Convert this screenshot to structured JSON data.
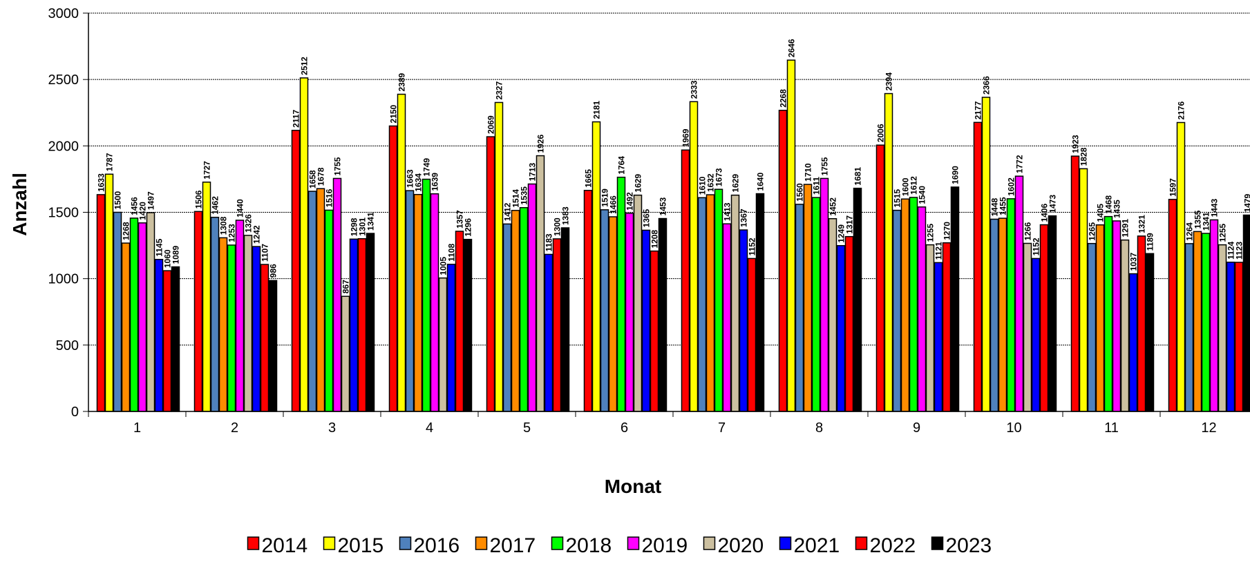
{
  "chart_data": {
    "type": "bar",
    "xlabel": "Monat",
    "ylabel": "Anzahl",
    "ylim": [
      0,
      3000
    ],
    "yticks": [
      "0",
      "500",
      "1000",
      "1500",
      "2000",
      "2500",
      "3000"
    ],
    "grid": true,
    "legend_position": "bottom",
    "categories": [
      "1",
      "2",
      "3",
      "4",
      "5",
      "6",
      "7",
      "8",
      "9",
      "10",
      "11",
      "12"
    ],
    "series": [
      {
        "name": "2014",
        "color": "#ff0000",
        "values": [
          1633,
          1506,
          2117,
          2150,
          2069,
          1665,
          1969,
          2268,
          2006,
          2177,
          1923,
          1597
        ]
      },
      {
        "name": "2015",
        "color": "#ffff00",
        "values": [
          1787,
          1727,
          2512,
          2389,
          2327,
          2181,
          2333,
          2646,
          2394,
          2366,
          1828,
          2176
        ]
      },
      {
        "name": "2016",
        "color": "#4f81bd",
        "values": [
          1500,
          1462,
          1658,
          1663,
          1412,
          1519,
          1610,
          1560,
          1515,
          1448,
          1265,
          1264
        ]
      },
      {
        "name": "2017",
        "color": "#ff8c00",
        "values": [
          1268,
          1308,
          1678,
          1634,
          1514,
          1466,
          1632,
          1710,
          1600,
          1455,
          1405,
          1355
        ]
      },
      {
        "name": "2018",
        "color": "#00ff00",
        "values": [
          1456,
          1253,
          1516,
          1749,
          1535,
          1764,
          1673,
          1611,
          1612,
          1602,
          1468,
          1341
        ]
      },
      {
        "name": "2019",
        "color": "#ff00ff",
        "values": [
          1420,
          1440,
          1755,
          1639,
          1713,
          1492,
          1413,
          1755,
          1540,
          1772,
          1435,
          1443
        ]
      },
      {
        "name": "2020",
        "color": "#ccc0a0",
        "values": [
          1497,
          1326,
          867,
          1005,
          1926,
          1629,
          1629,
          1452,
          1255,
          1266,
          1291,
          1255
        ]
      },
      {
        "name": "2021",
        "color": "#0000ff",
        "values": [
          1145,
          1242,
          1298,
          1108,
          1183,
          1365,
          1367,
          1249,
          1121,
          1152,
          1037,
          1124
        ]
      },
      {
        "name": "2022",
        "color": "#ff0000",
        "values": [
          1060,
          1107,
          1301,
          1357,
          1300,
          1208,
          1152,
          1317,
          1270,
          1406,
          1321,
          1123
        ]
      },
      {
        "name": "2023",
        "color": "#000000",
        "values": [
          1089,
          986,
          1341,
          1296,
          1383,
          1453,
          1640,
          1681,
          1690,
          1473,
          1189,
          1479
        ]
      }
    ]
  }
}
